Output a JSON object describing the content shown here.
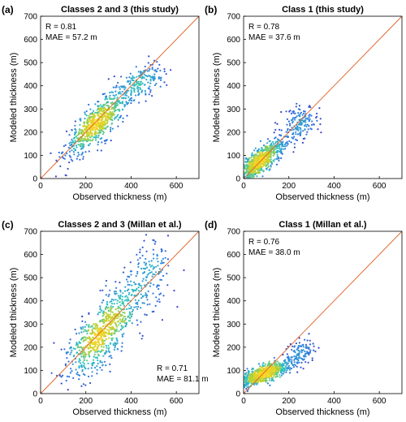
{
  "charts": [
    {
      "panel_label": "(a)",
      "title": "Classes 2 and 3 (this study)",
      "xlabel": "Observed thickness (m)",
      "ylabel": "Modeled thickness (m)",
      "stats": [
        "R = 0.81",
        "MAE = 57.2 m"
      ],
      "stats_position": "top-left"
    },
    {
      "panel_label": "(b)",
      "title": "Class 1 (this study)",
      "xlabel": "Observed thickness (m)",
      "ylabel": "Modeled thickness (m)",
      "stats": [
        "R = 0.78",
        "MAE = 37.6 m"
      ],
      "stats_position": "top-left"
    },
    {
      "panel_label": "(c)",
      "title": "Classes 2 and 3 (Millan et al.)",
      "xlabel": "Observed thickness (m)",
      "ylabel": "Modeled thickness (m)",
      "stats": [
        "R = 0.71",
        "MAE = 81.1 m"
      ],
      "stats_position": "bottom-right"
    },
    {
      "panel_label": "(d)",
      "title": "Class 1 (Millan et al.)",
      "xlabel": "Observed thickness (m)",
      "ylabel": "Modeled thickness (m)",
      "stats": [
        "R = 0.76",
        "MAE = 38.0 m"
      ],
      "stats_position": "top-left"
    }
  ],
  "chart_data": [
    {
      "type": "scatter",
      "xlim": [
        0,
        700
      ],
      "ylim": [
        0,
        700
      ],
      "xticks": [
        0,
        200,
        400,
        600
      ],
      "yticks": [
        0,
        100,
        200,
        300,
        400,
        500,
        600,
        700
      ],
      "one_to_one_line": true,
      "density_colormap": [
        "#3b2fbf",
        "#2f7fe0",
        "#2ec4c0",
        "#b8d12e",
        "#f9d423"
      ],
      "line_color": "#e0632a",
      "grid": false,
      "clusters": [
        {
          "x": 250,
          "y": 240,
          "sx": 70,
          "sy": 70,
          "rho": 0.82,
          "weight": 0.8
        },
        {
          "x": 450,
          "y": 420,
          "sx": 50,
          "sy": 40,
          "rho": 0.4,
          "weight": 0.2
        }
      ]
    },
    {
      "type": "scatter",
      "xlim": [
        0,
        700
      ],
      "ylim": [
        0,
        700
      ],
      "xticks": [
        0,
        200,
        400,
        600
      ],
      "yticks": [
        0,
        100,
        200,
        300,
        400,
        500,
        600,
        700
      ],
      "one_to_one_line": true,
      "density_colormap": [
        "#3b2fbf",
        "#2f7fe0",
        "#2ec4c0",
        "#b8d12e",
        "#f9d423"
      ],
      "line_color": "#e0632a",
      "grid": false,
      "clusters": [
        {
          "x": 75,
          "y": 75,
          "sx": 50,
          "sy": 45,
          "rho": 0.8,
          "weight": 0.82
        },
        {
          "x": 240,
          "y": 230,
          "sx": 40,
          "sy": 40,
          "rho": 0.3,
          "weight": 0.18
        }
      ]
    },
    {
      "type": "scatter",
      "xlim": [
        0,
        700
      ],
      "ylim": [
        0,
        700
      ],
      "xticks": [
        0,
        200,
        400,
        600
      ],
      "yticks": [
        0,
        100,
        200,
        300,
        400,
        500,
        600,
        700
      ],
      "one_to_one_line": true,
      "density_colormap": [
        "#3b2fbf",
        "#2f7fe0",
        "#2ec4c0",
        "#b8d12e",
        "#f9d423"
      ],
      "line_color": "#e0632a",
      "grid": false,
      "clusters": [
        {
          "x": 270,
          "y": 260,
          "sx": 85,
          "sy": 100,
          "rho": 0.72,
          "weight": 0.82
        },
        {
          "x": 470,
          "y": 500,
          "sx": 60,
          "sy": 90,
          "rho": 0.2,
          "weight": 0.18
        }
      ]
    },
    {
      "type": "scatter",
      "xlim": [
        0,
        700
      ],
      "ylim": [
        0,
        700
      ],
      "xticks": [
        0,
        200,
        400,
        600
      ],
      "yticks": [
        0,
        100,
        200,
        300,
        400,
        500,
        600,
        700
      ],
      "one_to_one_line": true,
      "density_colormap": [
        "#3b2fbf",
        "#2f7fe0",
        "#2ec4c0",
        "#b8d12e",
        "#f9d423"
      ],
      "line_color": "#e0632a",
      "grid": false,
      "clusters": [
        {
          "x": 90,
          "y": 85,
          "sx": 60,
          "sy": 28,
          "rho": 0.75,
          "weight": 0.88
        },
        {
          "x": 250,
          "y": 180,
          "sx": 35,
          "sy": 35,
          "rho": 0.4,
          "weight": 0.12
        }
      ]
    }
  ]
}
